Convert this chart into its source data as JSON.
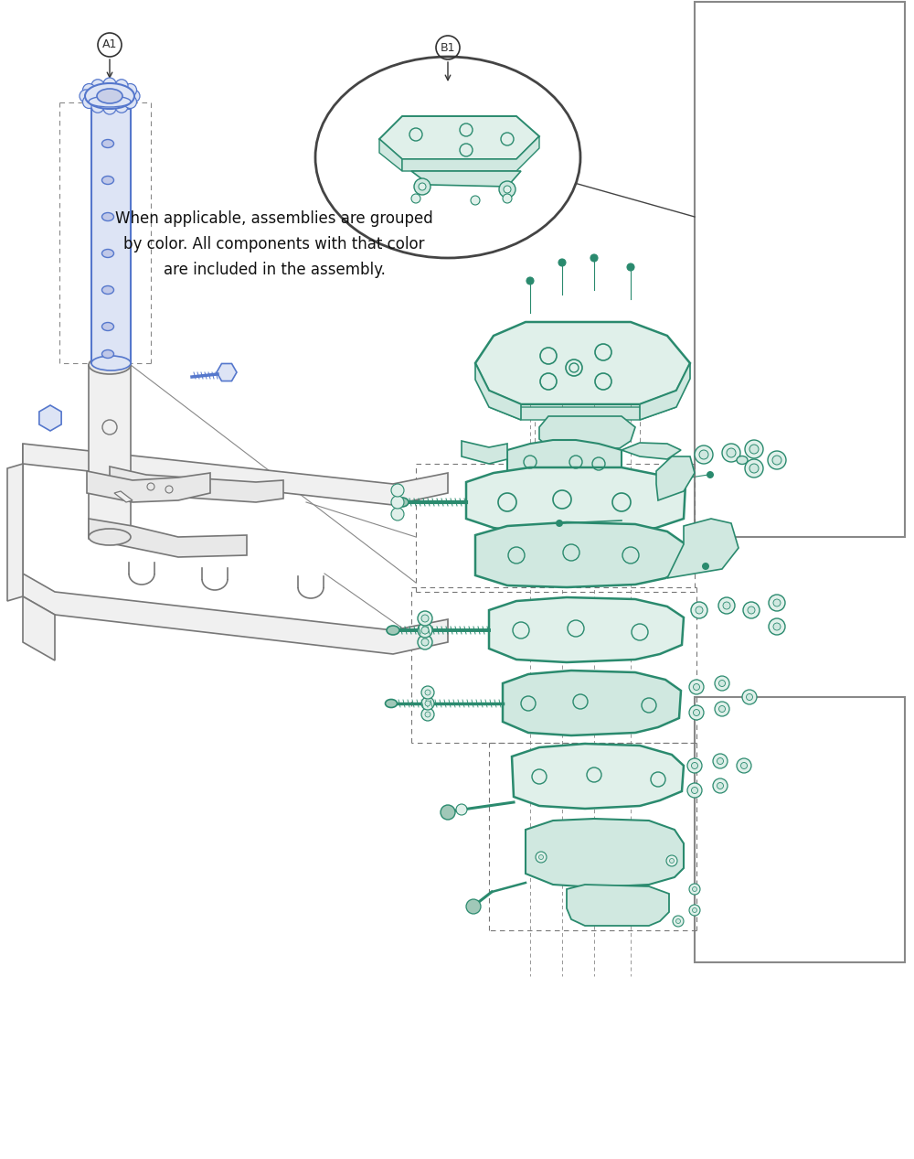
{
  "bg_color": "#ffffff",
  "blue": "#5577cc",
  "blue_fill": "#dde4f5",
  "green": "#2a8a6e",
  "green_fill": "#e0f0ea",
  "green_fill2": "#d0e8e0",
  "dark": "#333333",
  "gray": "#777777",
  "gray_fill": "#f0f0f0",
  "gray_fill2": "#e8e8e8",
  "annotation": "When applicable, assemblies are grouped\nby color. All components with that color\nare included in the assembly.",
  "label_A1": "A1",
  "label_B1": "B1",
  "fig_w": 10.0,
  "fig_h": 12.67,
  "dpi": 100,
  "xlim": [
    0,
    1000
  ],
  "ylim": [
    0,
    1267
  ]
}
